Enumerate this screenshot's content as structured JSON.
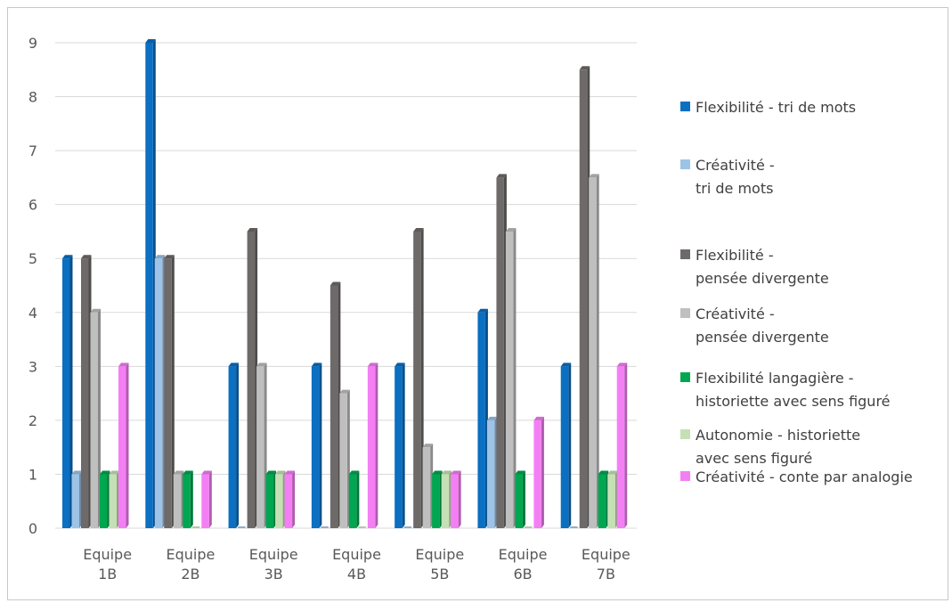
{
  "chart_data": {
    "type": "bar",
    "title": "",
    "xlabel": "",
    "ylabel": "",
    "ylim": [
      0,
      9
    ],
    "yticks": [
      "0",
      "1",
      "2",
      "3",
      "4",
      "5",
      "6",
      "7",
      "8",
      "9"
    ],
    "grid": true,
    "legend_position": "right",
    "categories": [
      [
        "Equipe",
        "1B"
      ],
      [
        "Equipe",
        "2B"
      ],
      [
        "Equipe",
        "3B"
      ],
      [
        "Equipe",
        "4B"
      ],
      [
        "Equipe",
        "5B"
      ],
      [
        "Equipe",
        "6B"
      ],
      [
        "Equipe",
        "7B"
      ]
    ],
    "series": [
      {
        "name": [
          "Flexibilité - tri de mots"
        ],
        "color": "#0b6fc2",
        "values": [
          5,
          9,
          3,
          3,
          3,
          4,
          3
        ]
      },
      {
        "name": [
          "Créativité -",
          "tri de mots"
        ],
        "color": "#9dc3e6",
        "values": [
          1,
          5,
          0,
          0,
          0,
          2,
          0
        ]
      },
      {
        "name": [
          "Flexibilité -",
          "pensée divergente"
        ],
        "color": "#6e6a6a",
        "values": [
          5,
          5,
          5.5,
          4.5,
          5.5,
          6.5,
          8.5
        ]
      },
      {
        "name": [
          "Créativité -",
          "pensée divergente"
        ],
        "color": "#bfbfbf",
        "values": [
          4,
          1,
          3,
          2.5,
          1.5,
          5.5,
          6.5
        ]
      },
      {
        "name": [
          "Flexibilité langagière -",
          "historiette avec sens figuré"
        ],
        "color": "#00a650",
        "values": [
          1,
          1,
          1,
          1,
          1,
          1,
          1
        ]
      },
      {
        "name": [
          "Autonomie - historiette",
          "avec sens figuré"
        ],
        "color": "#c5e0b4",
        "values": [
          1,
          0,
          1,
          0,
          1,
          0,
          1
        ]
      },
      {
        "name": [
          "Créativité - conte par analogie"
        ],
        "color": "#f47ff4",
        "values": [
          3,
          1,
          1,
          3,
          1,
          2,
          3
        ]
      }
    ]
  }
}
